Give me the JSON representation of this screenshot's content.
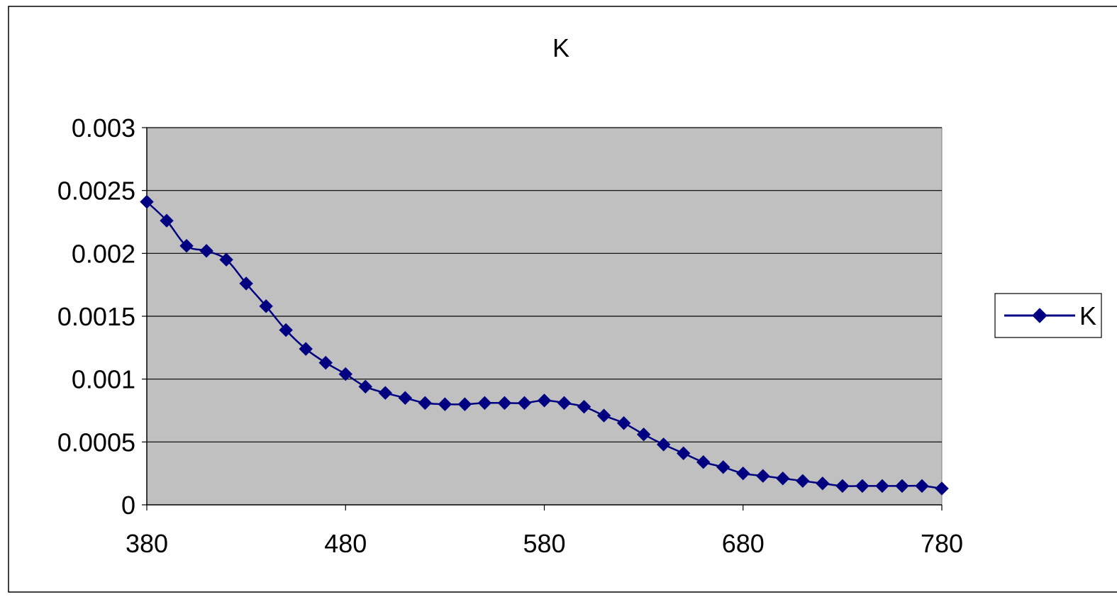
{
  "chart_data": {
    "type": "line",
    "title": "K",
    "xlabel": "",
    "ylabel": "",
    "xlim": [
      380,
      780
    ],
    "ylim": [
      0,
      0.003
    ],
    "x_ticks": [
      "380",
      "480",
      "580",
      "680",
      "780"
    ],
    "y_ticks": [
      "0",
      "0.0005",
      "0.001",
      "0.0015",
      "0.002",
      "0.0025",
      "0.003"
    ],
    "grid": true,
    "legend_position": "right",
    "plot_background": "#c0c0c0",
    "series": [
      {
        "name": "K",
        "color": "#000080",
        "marker": "diamond",
        "x": [
          380,
          390,
          400,
          410,
          420,
          430,
          440,
          450,
          460,
          470,
          480,
          490,
          500,
          510,
          520,
          530,
          540,
          550,
          560,
          570,
          580,
          590,
          600,
          610,
          620,
          630,
          640,
          650,
          660,
          670,
          680,
          690,
          700,
          710,
          720,
          730,
          740,
          750,
          760,
          770,
          780
        ],
        "values": [
          0.00241,
          0.00226,
          0.00206,
          0.00202,
          0.00195,
          0.00176,
          0.00158,
          0.00139,
          0.00124,
          0.00113,
          0.00104,
          0.00094,
          0.00089,
          0.00085,
          0.00081,
          0.0008,
          0.0008,
          0.00081,
          0.00081,
          0.00081,
          0.00083,
          0.00081,
          0.00078,
          0.00071,
          0.00065,
          0.00056,
          0.00048,
          0.00041,
          0.00034,
          0.0003,
          0.00025,
          0.00023,
          0.00021,
          0.00019,
          0.00017,
          0.00015,
          0.00015,
          0.00015,
          0.00015,
          0.00015,
          0.00013
        ]
      }
    ]
  }
}
